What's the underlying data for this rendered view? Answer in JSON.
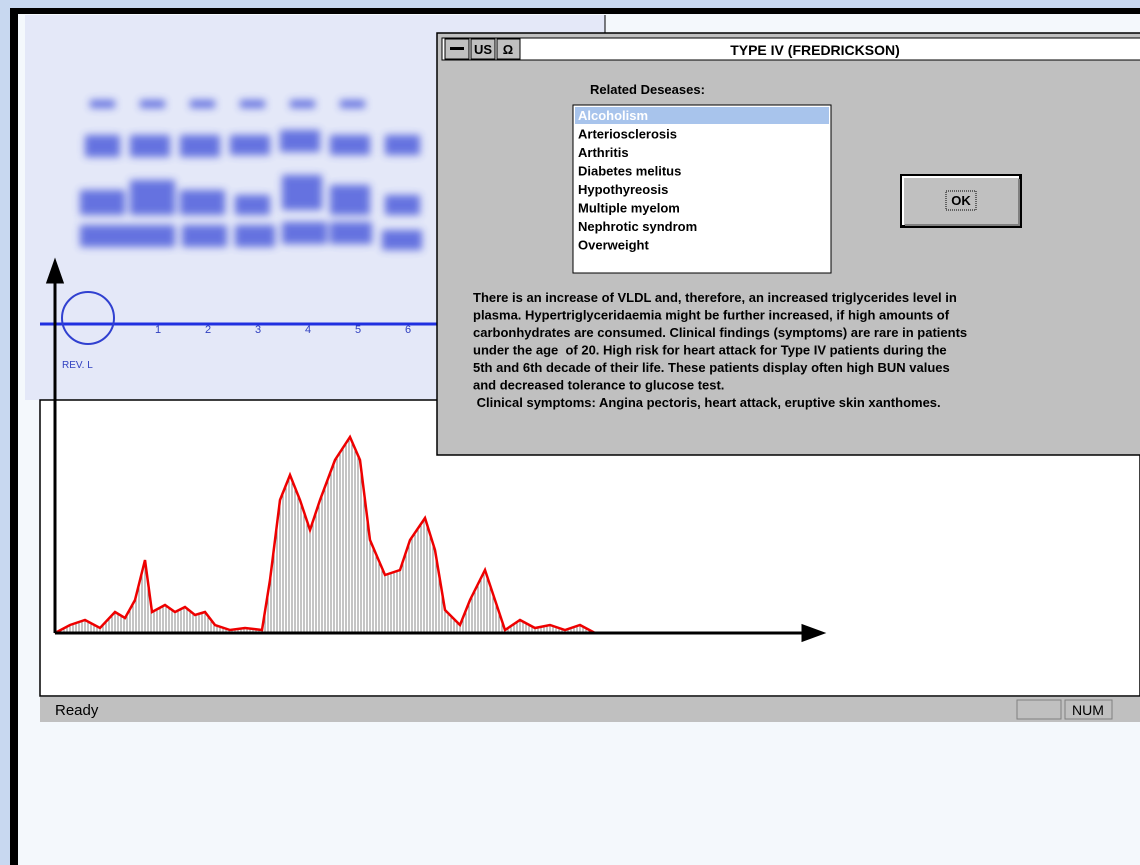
{
  "gel": {
    "mark": "REV. L",
    "lane_labels": [
      "1",
      "2",
      "3",
      "4",
      "5",
      "6"
    ]
  },
  "dialog": {
    "control_box": [
      "US",
      "Ω"
    ],
    "title": "TYPE IV (FREDRICKSON)",
    "list_label": "Related Deseases:",
    "list_items": [
      "Alcoholism",
      "Arteriosclerosis",
      "Arthritis",
      "Diabetes melitus",
      "Hypothyreosis",
      "Multiple myelom",
      "Nephrotic syndrom",
      "Overweight"
    ],
    "ok_button": "OK",
    "description": [
      "There is an increase of VLDL and, therefore, an increased triglycerides level in",
      "plasma. Hypertriglyceridaemia might be further increased, if high amounts of",
      "carbonhydrates are consumed. Clinical findings (symptoms) are rare in patients",
      "under the age  of 20. High risk for heart attack for Type IV patients during the",
      "5th and 6th decade of their life. These patients display often high BUN values",
      "and decreased tolerance to glucose test.",
      " Clinical symptoms: Angina pectoris, heart attack, eruptive skin xanthomes."
    ]
  },
  "status_bar": {
    "text": "Ready",
    "indicator": "NUM"
  }
}
